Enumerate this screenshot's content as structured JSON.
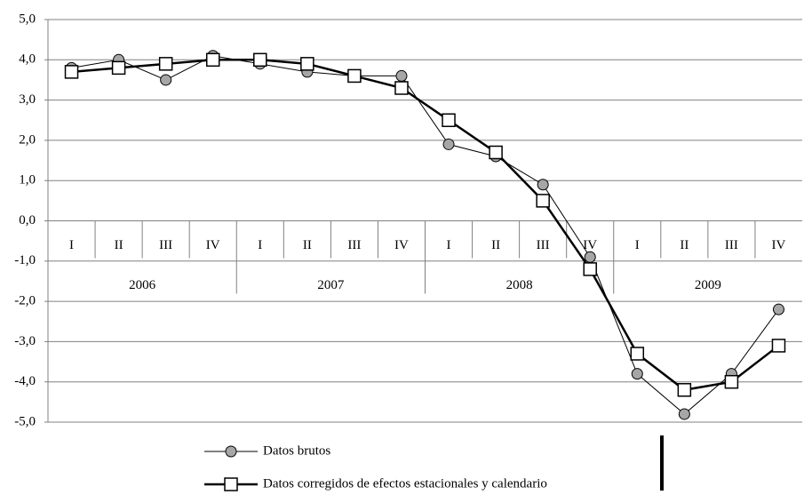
{
  "chart_data": {
    "type": "line",
    "categories": [
      "I",
      "II",
      "III",
      "IV",
      "I",
      "II",
      "III",
      "IV",
      "I",
      "II",
      "III",
      "IV",
      "I",
      "II",
      "III",
      "IV"
    ],
    "year_labels": [
      "2006",
      "2007",
      "2008",
      "2009"
    ],
    "series": [
      {
        "name": "Datos brutos",
        "color": "#a6a6a6",
        "marker": "circle",
        "values": [
          3.8,
          4.0,
          3.5,
          4.1,
          3.9,
          3.7,
          3.6,
          3.6,
          1.9,
          1.6,
          0.9,
          -0.9,
          -3.8,
          -4.8,
          -3.8,
          -2.2
        ]
      },
      {
        "name": "Datos corregidos de efectos estacionales y calendario",
        "color": "#ffffff",
        "marker": "square",
        "values": [
          3.7,
          3.8,
          3.9,
          4.0,
          4.0,
          3.9,
          3.6,
          3.3,
          2.5,
          1.7,
          0.5,
          -1.2,
          -3.3,
          -4.2,
          -4.0,
          -3.1
        ]
      }
    ],
    "ylim": [
      -5,
      5
    ],
    "yticks": [
      {
        "value": 5,
        "label": "5,0"
      },
      {
        "value": 4,
        "label": "4,0"
      },
      {
        "value": 3,
        "label": "3,0"
      },
      {
        "value": 2,
        "label": "2,0"
      },
      {
        "value": 1,
        "label": "1,0"
      },
      {
        "value": 0,
        "label": "0,0"
      },
      {
        "value": -1,
        "label": "-1,0"
      },
      {
        "value": -2,
        "label": "-2,0"
      },
      {
        "value": -3,
        "label": "-3,0"
      },
      {
        "value": -4,
        "label": "-4,0"
      },
      {
        "value": -5,
        "label": "-5,0"
      }
    ],
    "grid": true
  }
}
